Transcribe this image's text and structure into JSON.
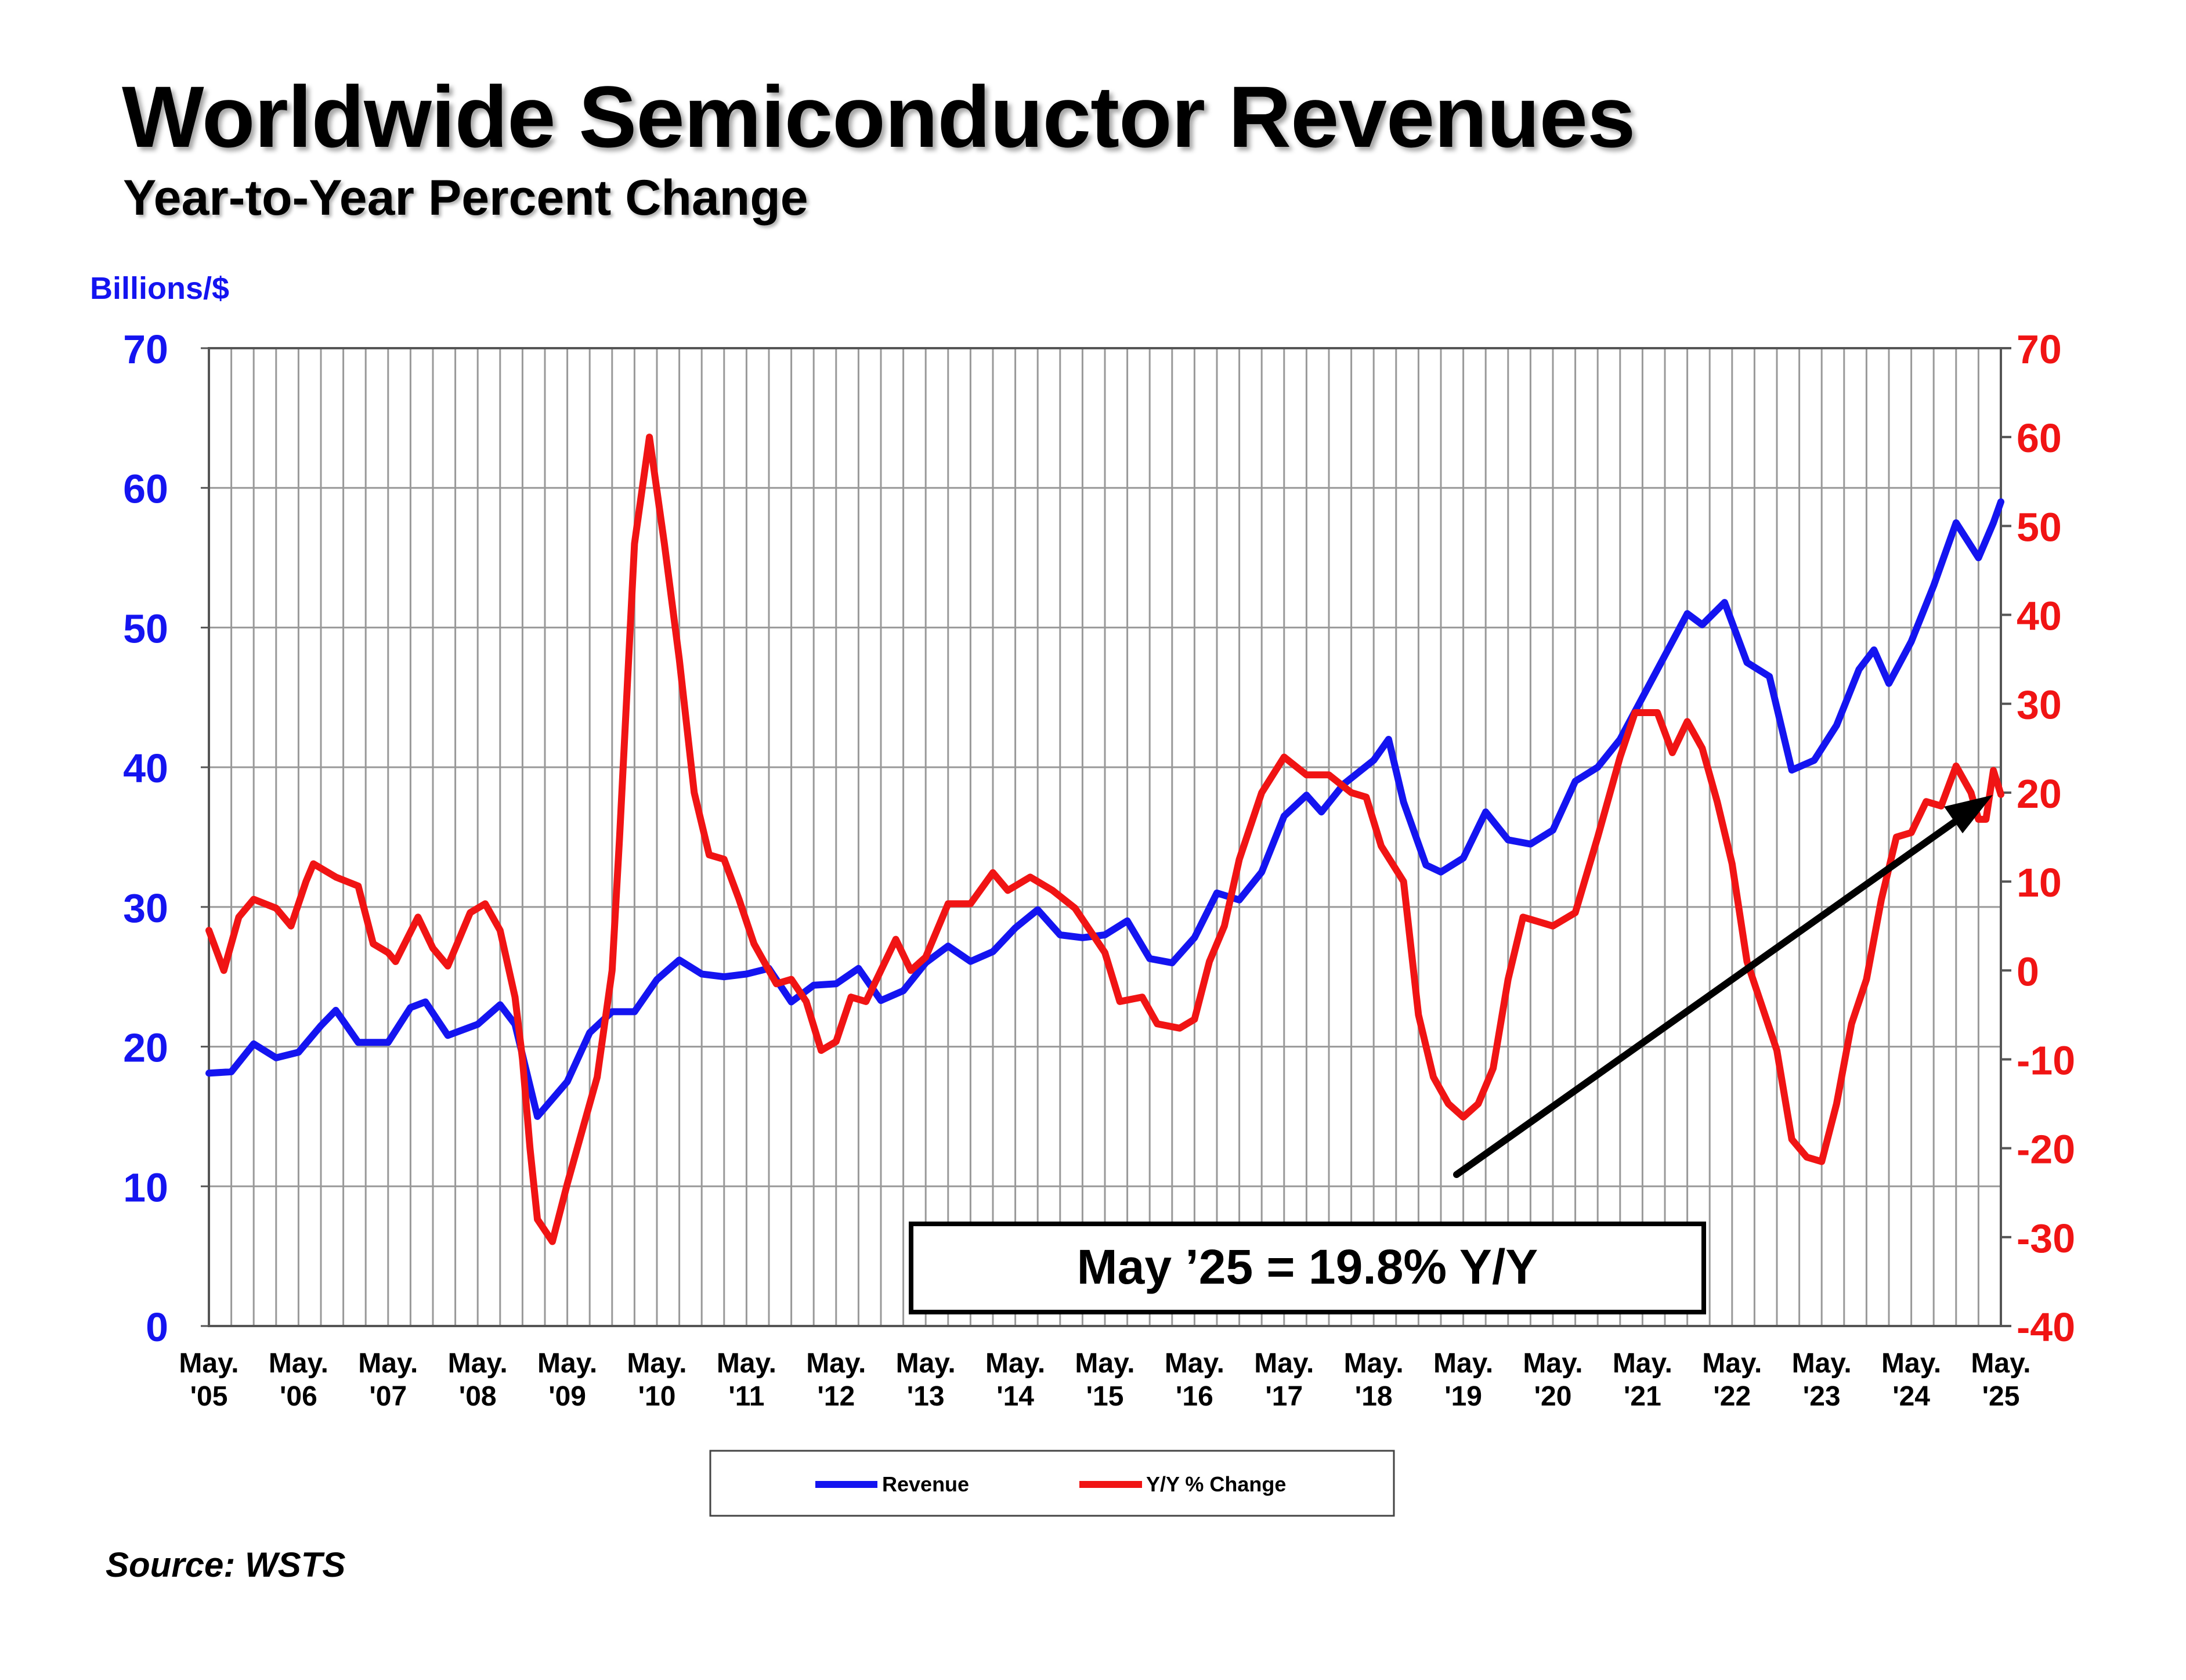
{
  "title": "Worldwide Semiconductor Revenues",
  "subtitle": "Year-to-Year Percent Change",
  "source": "Source: WSTS",
  "annotation": "May ’25 = 19.8% Y/Y",
  "colors": {
    "revenue": "#1414f0",
    "yoy": "#f01414",
    "grid": "#999999",
    "arrow": "#000000"
  },
  "chart_data": {
    "type": "line",
    "ylabel": "Billions/$",
    "ylim": [
      0,
      70
    ],
    "y2lim": [
      -40,
      70
    ],
    "yticks": [
      "0",
      "10",
      "20",
      "30",
      "40",
      "50",
      "60",
      "70"
    ],
    "y2ticks": [
      "-40",
      "-30",
      "-20",
      "-10",
      "0",
      "10",
      "20",
      "30",
      "40",
      "50",
      "60",
      "70"
    ],
    "xticks": [
      [
        "May.",
        "'05"
      ],
      [
        "May.",
        "'06"
      ],
      [
        "May.",
        "'07"
      ],
      [
        "May.",
        "'08"
      ],
      [
        "May.",
        "'09"
      ],
      [
        "May.",
        "'10"
      ],
      [
        "May.",
        "'11"
      ],
      [
        "May.",
        "'12"
      ],
      [
        "May.",
        "'13"
      ],
      [
        "May.",
        "'14"
      ],
      [
        "May.",
        "'15"
      ],
      [
        "May.",
        "'16"
      ],
      [
        "May.",
        "'17"
      ],
      [
        "May.",
        "'18"
      ],
      [
        "May.",
        "'19"
      ],
      [
        "May.",
        "'20"
      ],
      [
        "May.",
        "'21"
      ],
      [
        "May.",
        "'22"
      ],
      [
        "May.",
        "'23"
      ],
      [
        "May.",
        "'24"
      ],
      [
        "May.",
        "'25"
      ]
    ],
    "legend": "bottom-center",
    "grid": true,
    "series": [
      {
        "name": "Revenue",
        "axis": "left",
        "points": [
          [
            "2005-05",
            18.1
          ],
          [
            "2005-08",
            18.2
          ],
          [
            "2005-11",
            20.2
          ],
          [
            "2006-02",
            19.2
          ],
          [
            "2006-05",
            19.6
          ],
          [
            "2006-08",
            21.5
          ],
          [
            "2006-10",
            22.6
          ],
          [
            "2007-01",
            20.3
          ],
          [
            "2007-05",
            20.3
          ],
          [
            "2007-08",
            22.8
          ],
          [
            "2007-10",
            23.2
          ],
          [
            "2008-01",
            20.8
          ],
          [
            "2008-05",
            21.6
          ],
          [
            "2008-08",
            23.0
          ],
          [
            "2008-10",
            21.6
          ],
          [
            "2009-01",
            15.0
          ],
          [
            "2009-05",
            17.5
          ],
          [
            "2009-08",
            21.0
          ],
          [
            "2009-11",
            22.5
          ],
          [
            "2010-02",
            22.5
          ],
          [
            "2010-05",
            24.8
          ],
          [
            "2010-08",
            26.2
          ],
          [
            "2010-11",
            25.2
          ],
          [
            "2011-02",
            25.0
          ],
          [
            "2011-05",
            25.2
          ],
          [
            "2011-08",
            25.6
          ],
          [
            "2011-11",
            23.2
          ],
          [
            "2012-02",
            24.4
          ],
          [
            "2012-05",
            24.5
          ],
          [
            "2012-08",
            25.6
          ],
          [
            "2012-11",
            23.3
          ],
          [
            "2013-02",
            24.0
          ],
          [
            "2013-05",
            26.0
          ],
          [
            "2013-08",
            27.2
          ],
          [
            "2013-11",
            26.1
          ],
          [
            "2014-02",
            26.8
          ],
          [
            "2014-05",
            28.5
          ],
          [
            "2014-08",
            29.8
          ],
          [
            "2014-11",
            28.0
          ],
          [
            "2015-02",
            27.8
          ],
          [
            "2015-05",
            28.0
          ],
          [
            "2015-08",
            29.0
          ],
          [
            "2015-11",
            26.3
          ],
          [
            "2016-02",
            26.0
          ],
          [
            "2016-05",
            27.8
          ],
          [
            "2016-08",
            31.0
          ],
          [
            "2016-11",
            30.5
          ],
          [
            "2017-02",
            32.5
          ],
          [
            "2017-05",
            36.5
          ],
          [
            "2017-08",
            38.0
          ],
          [
            "2017-10",
            36.8
          ],
          [
            "2018-01",
            38.8
          ],
          [
            "2018-05",
            40.5
          ],
          [
            "2018-07",
            42.0
          ],
          [
            "2018-09",
            37.5
          ],
          [
            "2018-12",
            33.0
          ],
          [
            "2019-02",
            32.5
          ],
          [
            "2019-05",
            33.5
          ],
          [
            "2019-08",
            36.8
          ],
          [
            "2019-11",
            34.8
          ],
          [
            "2020-02",
            34.5
          ],
          [
            "2020-05",
            35.5
          ],
          [
            "2020-08",
            39.0
          ],
          [
            "2020-11",
            40.0
          ],
          [
            "2021-02",
            42.0
          ],
          [
            "2021-05",
            45.0
          ],
          [
            "2021-08",
            48.0
          ],
          [
            "2021-11",
            51.0
          ],
          [
            "2022-01",
            50.2
          ],
          [
            "2022-04",
            51.8
          ],
          [
            "2022-07",
            47.5
          ],
          [
            "2022-10",
            46.5
          ],
          [
            "2023-01",
            39.8
          ],
          [
            "2023-04",
            40.5
          ],
          [
            "2023-07",
            43.0
          ],
          [
            "2023-10",
            47.0
          ],
          [
            "2023-12",
            48.4
          ],
          [
            "2024-02",
            46.0
          ],
          [
            "2024-05",
            49.0
          ],
          [
            "2024-08",
            53.0
          ],
          [
            "2024-11",
            57.5
          ],
          [
            "2025-02",
            55.0
          ],
          [
            "2025-04",
            57.5
          ],
          [
            "2025-05",
            59.0
          ]
        ]
      },
      {
        "name": "Y/Y % Change",
        "axis": "right",
        "points": [
          [
            "2005-05",
            4.5
          ],
          [
            "2005-07",
            0.0
          ],
          [
            "2005-09",
            6.0
          ],
          [
            "2005-11",
            8.0
          ],
          [
            "2006-02",
            7.0
          ],
          [
            "2006-04",
            5.0
          ],
          [
            "2006-06",
            10.0
          ],
          [
            "2006-07",
            12.0
          ],
          [
            "2006-10",
            10.5
          ],
          [
            "2007-01",
            9.5
          ],
          [
            "2007-03",
            3.0
          ],
          [
            "2007-05",
            2.0
          ],
          [
            "2007-06",
            1.0
          ],
          [
            "2007-09",
            6.0
          ],
          [
            "2007-11",
            2.5
          ],
          [
            "2008-01",
            0.5
          ],
          [
            "2008-04",
            6.5
          ],
          [
            "2008-06",
            7.5
          ],
          [
            "2008-08",
            4.5
          ],
          [
            "2008-10",
            -3.0
          ],
          [
            "2008-11",
            -10.0
          ],
          [
            "2008-12",
            -20.0
          ],
          [
            "2009-01",
            -28.0
          ],
          [
            "2009-03",
            -30.5
          ],
          [
            "2009-05",
            -24.0
          ],
          [
            "2009-07",
            -18.0
          ],
          [
            "2009-09",
            -12.0
          ],
          [
            "2009-11",
            0.0
          ],
          [
            "2009-12",
            15.0
          ],
          [
            "2010-02",
            48.0
          ],
          [
            "2010-04",
            60.0
          ],
          [
            "2010-06",
            48.0
          ],
          [
            "2010-08",
            35.0
          ],
          [
            "2010-10",
            20.0
          ],
          [
            "2010-12",
            13.0
          ],
          [
            "2011-02",
            12.5
          ],
          [
            "2011-04",
            8.0
          ],
          [
            "2011-06",
            3.0
          ],
          [
            "2011-09",
            -1.5
          ],
          [
            "2011-11",
            -1.0
          ],
          [
            "2012-01",
            -3.5
          ],
          [
            "2012-03",
            -9.0
          ],
          [
            "2012-05",
            -8.0
          ],
          [
            "2012-07",
            -3.0
          ],
          [
            "2012-09",
            -3.5
          ],
          [
            "2012-11",
            0.0
          ],
          [
            "2013-01",
            3.5
          ],
          [
            "2013-03",
            0.0
          ],
          [
            "2013-05",
            1.5
          ],
          [
            "2013-08",
            7.5
          ],
          [
            "2013-11",
            7.5
          ],
          [
            "2014-02",
            11.0
          ],
          [
            "2014-04",
            9.0
          ],
          [
            "2014-07",
            10.5
          ],
          [
            "2014-10",
            9.0
          ],
          [
            "2015-01",
            7.0
          ],
          [
            "2015-03",
            4.5
          ],
          [
            "2015-05",
            2.0
          ],
          [
            "2015-07",
            -3.5
          ],
          [
            "2015-10",
            -3.0
          ],
          [
            "2015-12",
            -6.0
          ],
          [
            "2016-03",
            -6.5
          ],
          [
            "2016-05",
            -5.5
          ],
          [
            "2016-07",
            1.0
          ],
          [
            "2016-09",
            5.0
          ],
          [
            "2016-11",
            12.5
          ],
          [
            "2017-02",
            20.0
          ],
          [
            "2017-05",
            24.0
          ],
          [
            "2017-08",
            22.0
          ],
          [
            "2017-11",
            22.0
          ],
          [
            "2018-02",
            20.0
          ],
          [
            "2018-04",
            19.5
          ],
          [
            "2018-06",
            14.0
          ],
          [
            "2018-09",
            10.0
          ],
          [
            "2018-11",
            -5.0
          ],
          [
            "2019-01",
            -12.0
          ],
          [
            "2019-03",
            -15.0
          ],
          [
            "2019-05",
            -16.5
          ],
          [
            "2019-07",
            -15.0
          ],
          [
            "2019-09",
            -11.0
          ],
          [
            "2019-11",
            -1.0
          ],
          [
            "2020-01",
            6.0
          ],
          [
            "2020-03",
            5.5
          ],
          [
            "2020-05",
            5.0
          ],
          [
            "2020-08",
            6.5
          ],
          [
            "2020-11",
            15.0
          ],
          [
            "2021-02",
            24.0
          ],
          [
            "2021-04",
            29.0
          ],
          [
            "2021-07",
            29.0
          ],
          [
            "2021-09",
            24.5
          ],
          [
            "2021-11",
            28.0
          ],
          [
            "2022-01",
            25.0
          ],
          [
            "2022-03",
            19.0
          ],
          [
            "2022-05",
            12.0
          ],
          [
            "2022-07",
            1.0
          ],
          [
            "2022-09",
            -4.0
          ],
          [
            "2022-11",
            -9.0
          ],
          [
            "2023-01",
            -19.0
          ],
          [
            "2023-03",
            -21.0
          ],
          [
            "2023-05",
            -21.5
          ],
          [
            "2023-07",
            -15.0
          ],
          [
            "2023-09",
            -6.0
          ],
          [
            "2023-11",
            -1.0
          ],
          [
            "2024-01",
            8.0
          ],
          [
            "2024-03",
            15.0
          ],
          [
            "2024-05",
            15.5
          ],
          [
            "2024-07",
            19.0
          ],
          [
            "2024-09",
            18.5
          ],
          [
            "2024-11",
            23.0
          ],
          [
            "2025-01",
            20.0
          ],
          [
            "2025-02",
            17.0
          ],
          [
            "2025-03",
            17.0
          ],
          [
            "2025-04",
            22.5
          ],
          [
            "2025-05",
            19.8
          ]
        ]
      }
    ]
  }
}
